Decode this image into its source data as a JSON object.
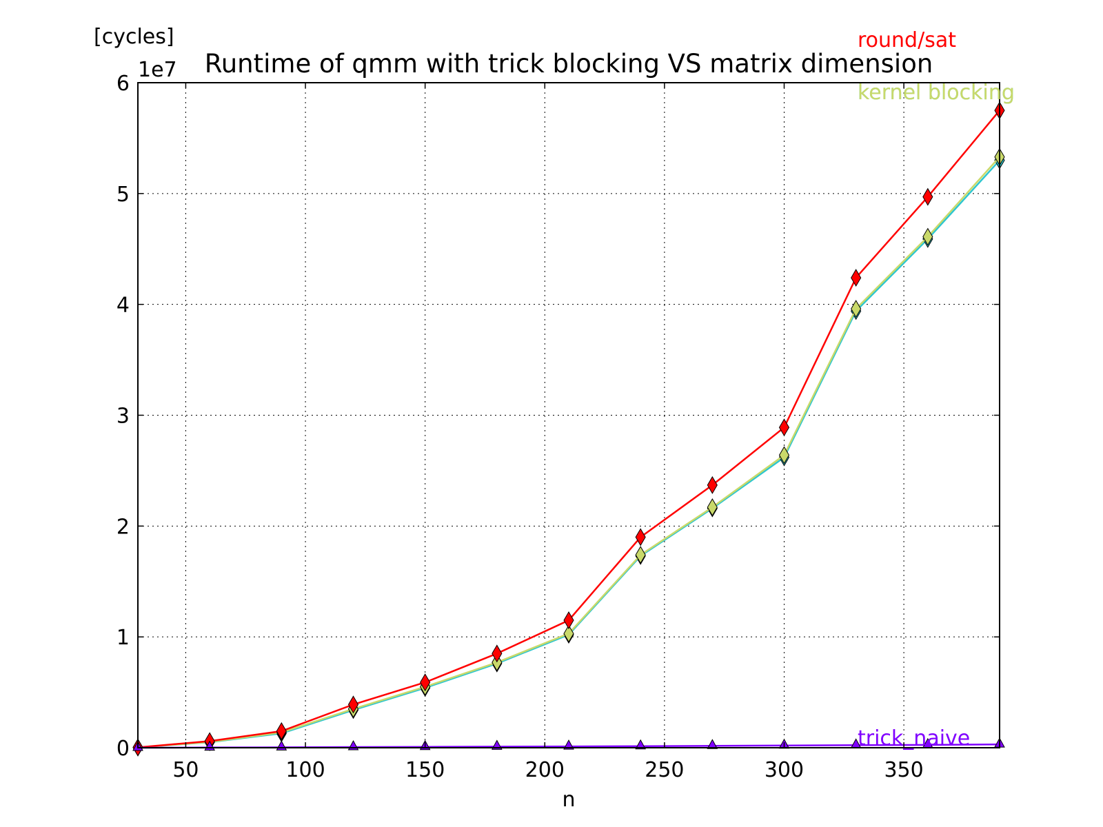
{
  "chart_data": {
    "type": "line",
    "title": "Runtime of qmm with trick blocking VS matrix dimension",
    "xlabel": "n",
    "ylabel": "[cycles]",
    "y_offset_label": "1e7",
    "y_scale": 10000000,
    "xlim": [
      30,
      390
    ],
    "ylim": [
      0,
      60000000
    ],
    "x_ticks": [
      50,
      100,
      150,
      200,
      250,
      300,
      350
    ],
    "x_tick_labels": [
      "50",
      "100",
      "150",
      "200",
      "250",
      "300",
      "350"
    ],
    "y_ticks": [
      0,
      10000000,
      20000000,
      30000000,
      40000000,
      50000000,
      60000000
    ],
    "y_tick_labels": [
      "0",
      "1",
      "2",
      "3",
      "4",
      "5",
      "6"
    ],
    "grid": true,
    "x": [
      30,
      60,
      90,
      120,
      150,
      180,
      210,
      240,
      270,
      300,
      330,
      360,
      390
    ],
    "series": [
      {
        "name": "kernel blocking",
        "color": "#2ec6cf",
        "marker": "diamond",
        "values": [
          20000,
          500000,
          1300000,
          3400000,
          5400000,
          7600000,
          10200000,
          17300000,
          21600000,
          26200000,
          39400000,
          45900000,
          53000000
        ]
      },
      {
        "name": "kernel blocking",
        "color": "#c9d96a",
        "marker": "diamond",
        "values": [
          20000,
          520000,
          1380000,
          3500000,
          5500000,
          7700000,
          10300000,
          17400000,
          21700000,
          26400000,
          39600000,
          46100000,
          53300000
        ]
      },
      {
        "name": "round/sat",
        "color": "#ff0000",
        "marker": "diamond",
        "values": [
          30000,
          600000,
          1500000,
          3900000,
          5900000,
          8500000,
          11500000,
          19000000,
          23700000,
          28900000,
          42400000,
          49700000,
          57500000
        ]
      },
      {
        "name": "trick_naive",
        "color": "#8000ff",
        "marker": "triangle",
        "values": [
          0,
          20000,
          40000,
          60000,
          80000,
          100000,
          120000,
          140000,
          170000,
          200000,
          230000,
          260000,
          300000
        ]
      }
    ]
  }
}
